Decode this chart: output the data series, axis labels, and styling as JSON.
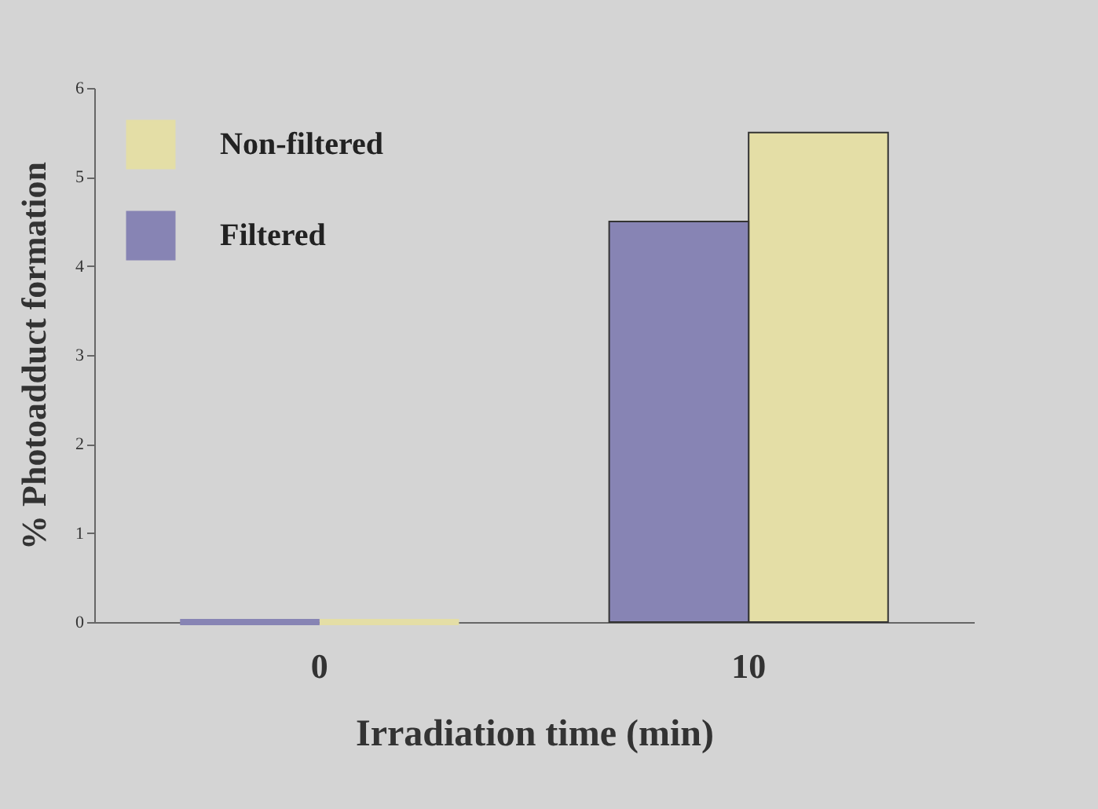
{
  "chart_data": {
    "type": "bar",
    "xlabel": "Irradiation time (min)",
    "ylabel": "% Photoadduct formation",
    "categories": [
      "0",
      "10"
    ],
    "series": [
      {
        "name": "Non-filtered",
        "color": "#e4dea6",
        "values": [
          0,
          5.5
        ]
      },
      {
        "name": "Filtered",
        "color": "#8784b4",
        "values": [
          0,
          4.5
        ]
      }
    ],
    "ylim": [
      0,
      6
    ],
    "yticks": [
      0,
      1,
      2,
      3,
      4,
      5,
      6
    ],
    "grid": false,
    "legend": "top left"
  }
}
